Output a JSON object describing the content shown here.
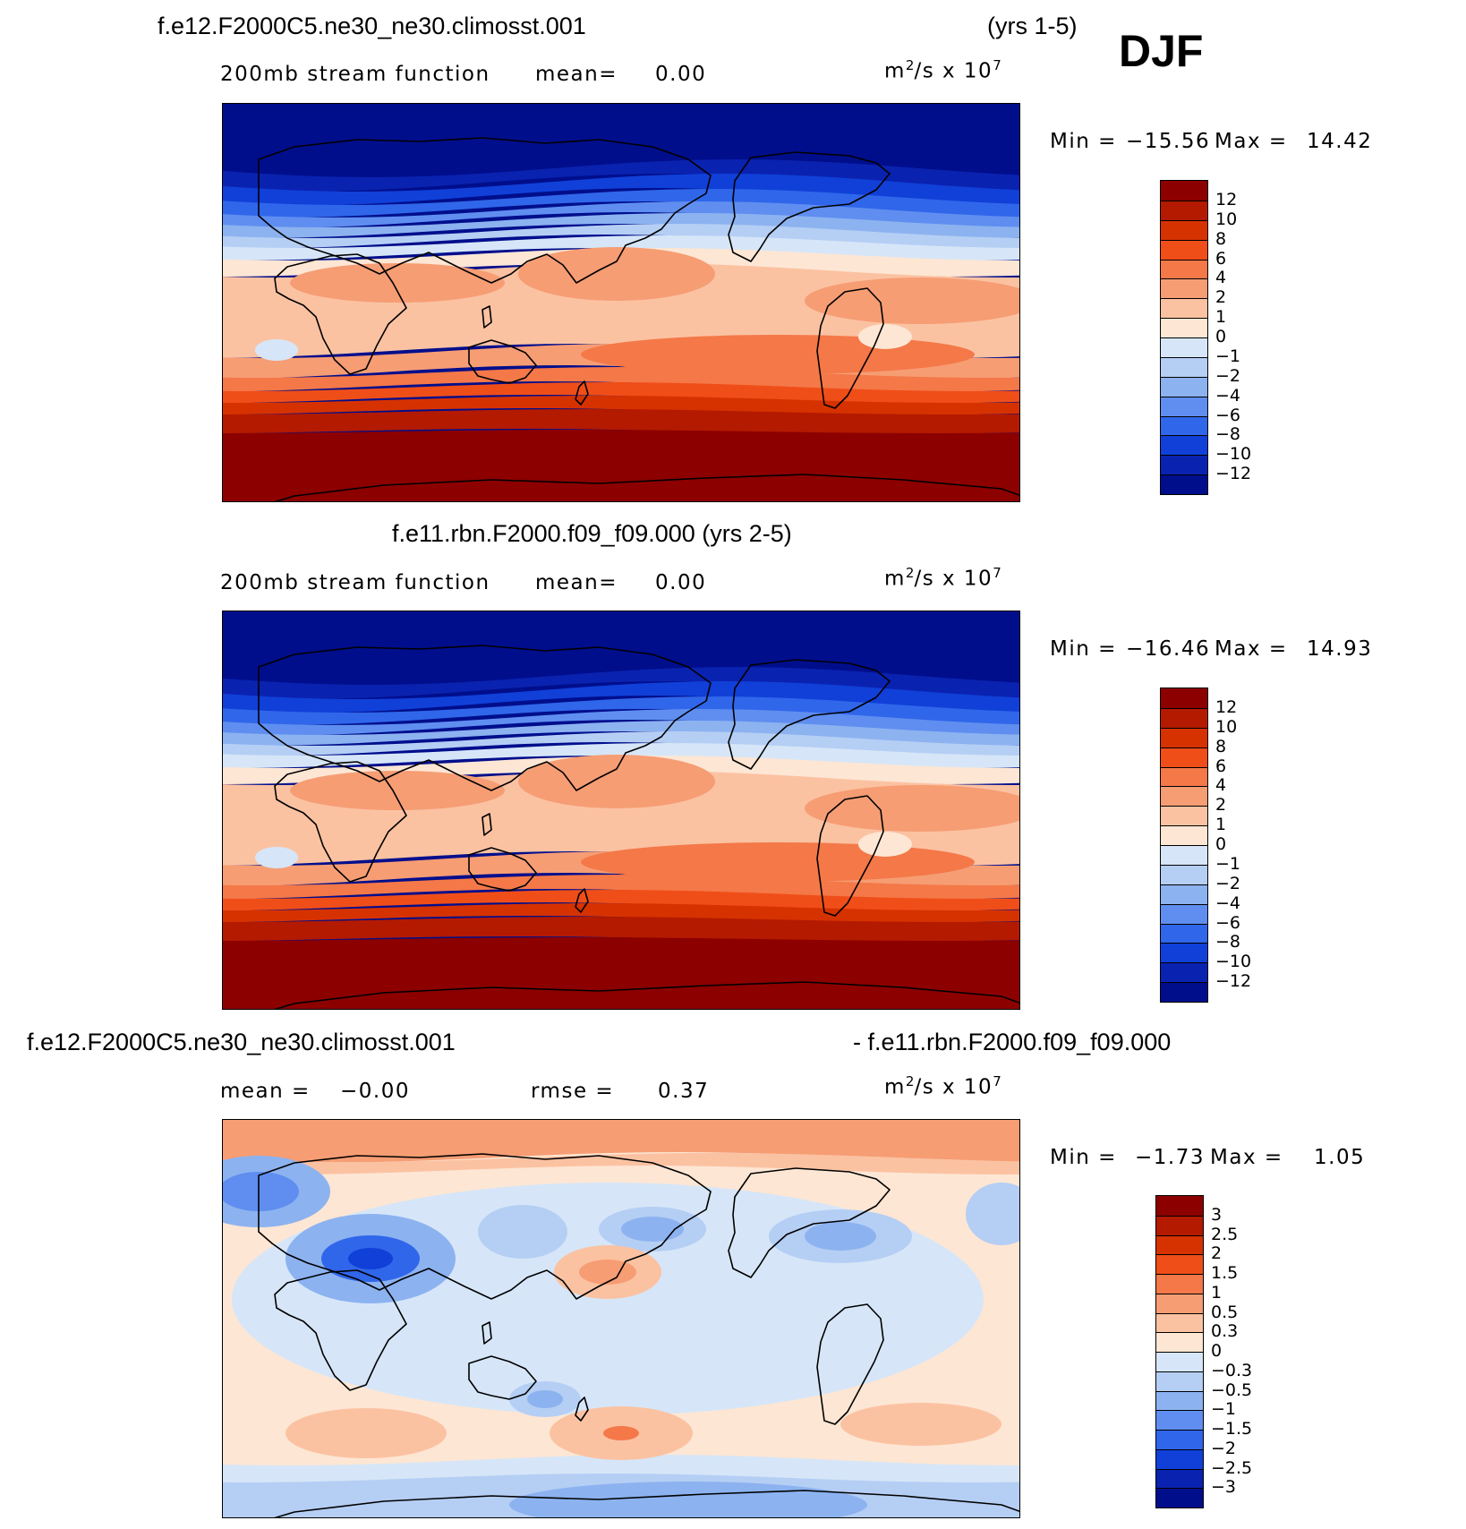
{
  "season": "DJF",
  "panels": [
    {
      "id": "top",
      "title": "f.e12.F2000C5.ne30_ne30.climosst.001",
      "years": "(yrs 1-5)",
      "field_label": "200mb stream function",
      "stat_label": "mean=",
      "stat_value": "0.00",
      "unit_base": "m",
      "unit_exp": "2",
      "unit_rest": "/s x 10",
      "unit_pow": "7",
      "min_label": "Min =",
      "min_value": "−15.56",
      "max_label": "Max =",
      "max_value": "14.42",
      "map_kind": "climatology",
      "colorbar": {
        "labels": [
          "12",
          "10",
          "8",
          "6",
          "4",
          "2",
          "1",
          "0",
          "−1",
          "−2",
          "−4",
          "−6",
          "−8",
          "−10",
          "−12"
        ],
        "colors": [
          "#8c0000",
          "#b31a00",
          "#d63200",
          "#f04e18",
          "#f47848",
          "#f69d74",
          "#fbc2a2",
          "#fde6d4",
          "#d6e6f8",
          "#b5cef4",
          "#8cb2f0",
          "#5f8ef0",
          "#3066ea",
          "#1040d8",
          "#0a22b0",
          "#000e8c"
        ]
      }
    },
    {
      "id": "middle",
      "title": "f.e11.rbn.F2000.f09_f09.000 (yrs 2-5)",
      "field_label": "200mb stream function",
      "stat_label": "mean=",
      "stat_value": "0.00",
      "unit_base": "m",
      "unit_exp": "2",
      "unit_rest": "/s x 10",
      "unit_pow": "7",
      "min_label": "Min =",
      "min_value": "−16.46",
      "max_label": "Max =",
      "max_value": "14.93",
      "map_kind": "climatology",
      "colorbar": {
        "labels": [
          "12",
          "10",
          "8",
          "6",
          "4",
          "2",
          "1",
          "0",
          "−1",
          "−2",
          "−4",
          "−6",
          "−8",
          "−10",
          "−12"
        ],
        "colors": [
          "#8c0000",
          "#b31a00",
          "#d63200",
          "#f04e18",
          "#f47848",
          "#f69d74",
          "#fbc2a2",
          "#fde6d4",
          "#d6e6f8",
          "#b5cef4",
          "#8cb2f0",
          "#5f8ef0",
          "#3066ea",
          "#1040d8",
          "#0a22b0",
          "#000e8c"
        ]
      }
    },
    {
      "id": "bottom",
      "title_left": "f.e12.F2000C5.ne30_ne30.climosst.001",
      "title_right": "- f.e11.rbn.F2000.f09_f09.000",
      "mean_label": "mean =",
      "mean_value": "−0.00",
      "rmse_label": "rmse =",
      "rmse_value": "0.37",
      "unit_base": "m",
      "unit_exp": "2",
      "unit_rest": "/s x 10",
      "unit_pow": "7",
      "min_label": "Min =",
      "min_value": "−1.73",
      "max_label": "Max =",
      "max_value": "1.05",
      "map_kind": "difference",
      "colorbar": {
        "labels": [
          "3",
          "2.5",
          "2",
          "1.5",
          "1",
          "0.5",
          "0.3",
          "0",
          "−0.3",
          "−0.5",
          "−1",
          "−1.5",
          "−2",
          "−2.5",
          "−3"
        ],
        "colors": [
          "#8c0000",
          "#b31a00",
          "#d63200",
          "#f04e18",
          "#f47848",
          "#f69d74",
          "#fbc2a2",
          "#fde6d4",
          "#d6e6f8",
          "#b5cef4",
          "#8cb2f0",
          "#5f8ef0",
          "#3066ea",
          "#1040d8",
          "#0a22b0",
          "#000e8c"
        ]
      }
    }
  ]
}
